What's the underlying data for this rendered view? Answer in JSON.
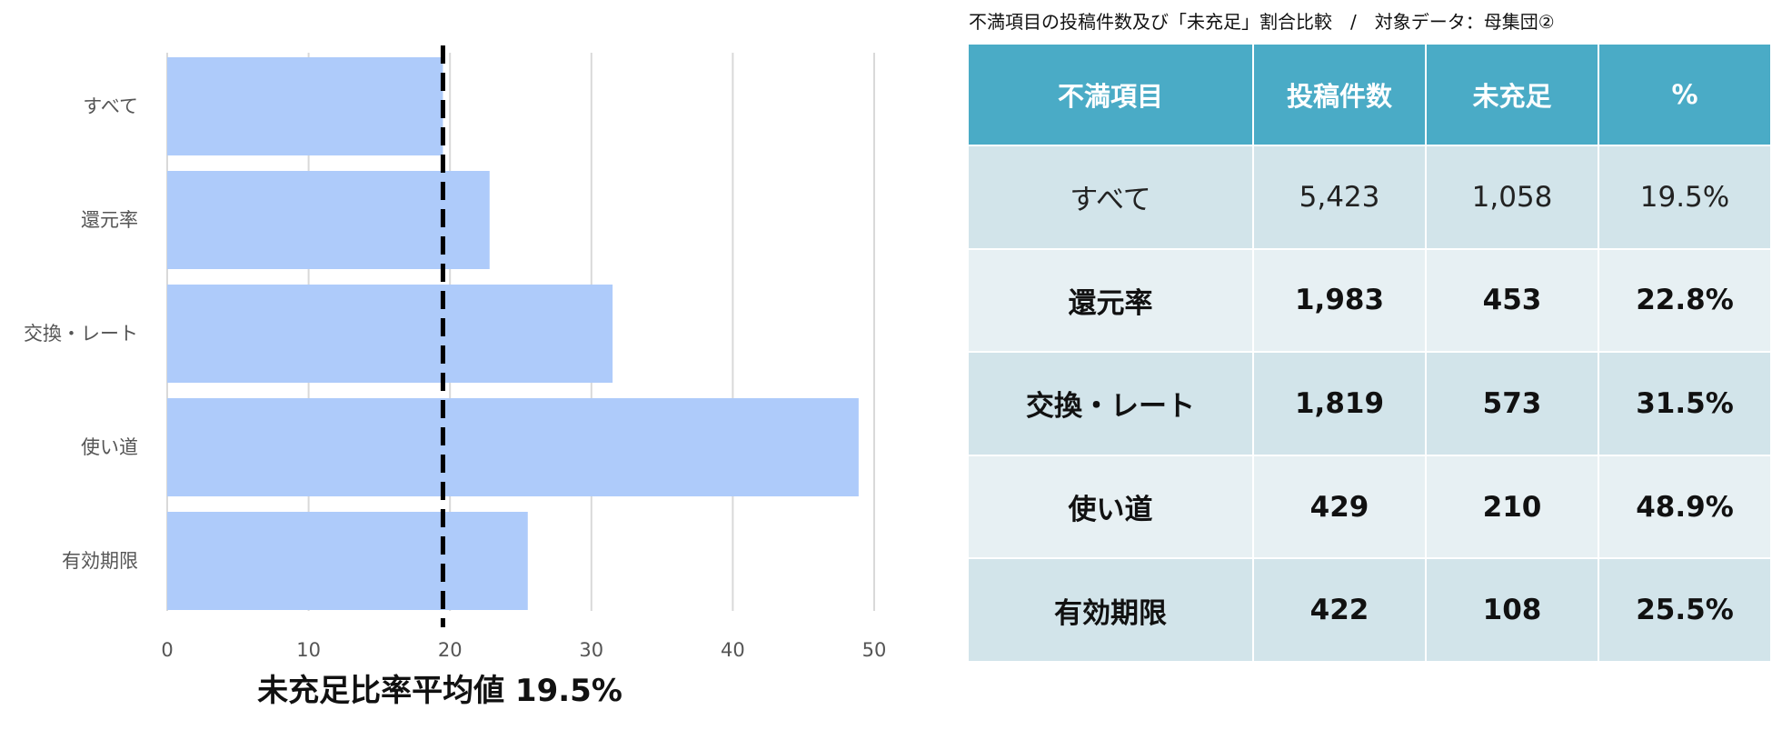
{
  "chart_data": {
    "type": "bar",
    "orientation": "horizontal",
    "categories": [
      "すべて",
      "還元率",
      "交換・レート",
      "使い道",
      "有効期限"
    ],
    "values": [
      19.5,
      22.8,
      31.5,
      48.9,
      25.5
    ],
    "xlim": [
      0,
      50
    ],
    "xticks": [
      0,
      10,
      20,
      30,
      40,
      50
    ],
    "grid": true,
    "bar_color": "#aecbfa",
    "reference_line": {
      "value": 19.5,
      "style": "dashed",
      "color": "#000000"
    },
    "caption": "未充足比率平均値 19.5%"
  },
  "table": {
    "caption": "不満項目の投稿件数及び「未充足」割合比較　/　対象データ：母集団②",
    "headers": [
      "不満項目",
      "投稿件数",
      "未充足",
      "%"
    ],
    "rows": [
      [
        "すべて",
        "5,423",
        "1,058",
        "19.5%"
      ],
      [
        "還元率",
        "1,983",
        "453",
        "22.8%"
      ],
      [
        "交換・レート",
        "1,819",
        "573",
        "31.5%"
      ],
      [
        "使い道",
        "429",
        "210",
        "48.9%"
      ],
      [
        "有効期限",
        "422",
        "108",
        "25.5%"
      ]
    ],
    "header_color": "#4aabc6",
    "row_colors": [
      "#d2e4ea",
      "#e7f0f3"
    ]
  }
}
